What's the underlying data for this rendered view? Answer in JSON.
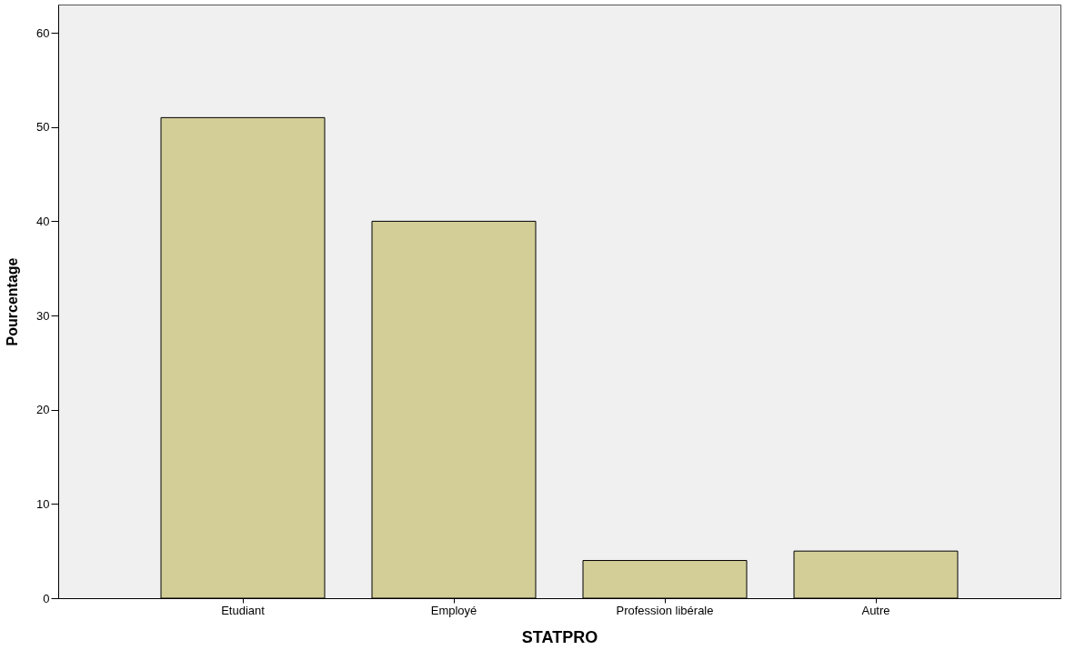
{
  "chart_data": {
    "type": "bar",
    "xlabel": "STATPRO",
    "ylabel": "Pourcentage",
    "categories": [
      "Etudiant",
      "Employé",
      "Profession libérale",
      "Autre"
    ],
    "values": [
      51,
      40,
      4,
      5
    ],
    "color": "#d3ce97",
    "ylim": [
      0,
      63
    ],
    "yticks": [
      0,
      10,
      20,
      30,
      40,
      50,
      60
    ],
    "grid": false
  }
}
